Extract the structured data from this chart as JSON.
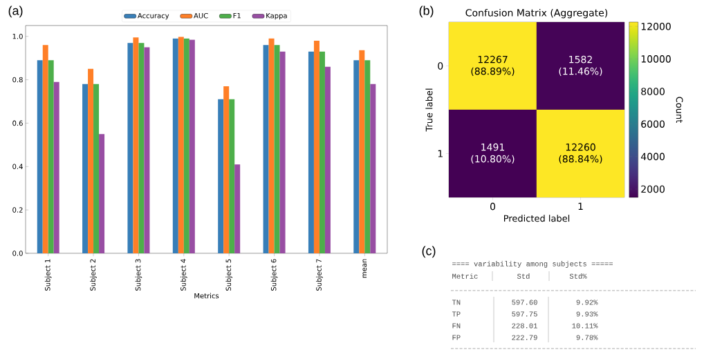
{
  "chart_data": [
    {
      "type": "bar",
      "annotations": [
        "(a)"
      ],
      "xlabel": "Metrics",
      "categories": [
        "Subject 1",
        "Subject 2",
        "Subject 3",
        "Subject 4",
        "Subject 5",
        "Subject 6",
        "Subject 7",
        "mean"
      ],
      "series": [
        {
          "name": "Accuracy",
          "color": "#377eb8",
          "values": [
            0.89,
            0.78,
            0.97,
            0.99,
            0.71,
            0.96,
            0.93,
            0.89
          ]
        },
        {
          "name": "AUC",
          "color": "#ff7f27",
          "values": [
            0.96,
            0.85,
            0.995,
            0.998,
            0.77,
            0.99,
            0.98,
            0.936
          ]
        },
        {
          "name": "F1",
          "color": "#4daf4a",
          "values": [
            0.89,
            0.78,
            0.97,
            0.99,
            0.71,
            0.96,
            0.93,
            0.89
          ]
        },
        {
          "name": "Kappa",
          "color": "#984ea3",
          "values": [
            0.79,
            0.55,
            0.95,
            0.985,
            0.41,
            0.93,
            0.86,
            0.78
          ]
        }
      ],
      "ylim": [
        0,
        1.05
      ],
      "yticks": [
        {
          "value": 0,
          "label": "0.0"
        },
        0.2,
        0.4,
        0.6,
        0.8,
        {
          "value": 1,
          "label": "1.0"
        }
      ],
      "legend": "top",
      "grid": false
    },
    {
      "type": "heatmap",
      "annotations": [
        "(b)"
      ],
      "title": "Confusion Matrix (Aggregate)",
      "xlabel": "Predicted label",
      "ylabel": "True label",
      "clabel": "Count",
      "categories": [
        "0",
        "1"
      ],
      "y_categories": [
        "0",
        "1"
      ],
      "cells": [
        [
          12267,
          1582
        ],
        [
          1491,
          12260
        ]
      ],
      "cell_labels": [
        [
          "12267 (88.89%)",
          "1582 (11.46%)"
        ],
        [
          "1491 (10.80%)",
          "12260 (88.84%)"
        ]
      ],
      "clim": [
        1491,
        12267
      ],
      "cticks": [
        2000,
        4000,
        6000,
        8000,
        10000,
        12000
      ]
    },
    {
      "type": "other",
      "annotations": [
        "(c)",
        "Metric"
      ],
      "title": "==== variability among subjects =====",
      "categories": [
        "TN",
        "TP",
        "FN",
        "FP"
      ],
      "series": [
        {
          "name": "Std",
          "values": [
            597.6,
            597.75,
            228.01,
            222.79
          ],
          "value_labels": [
            "597.60",
            "597.75",
            "228.01",
            "222.79"
          ]
        },
        {
          "name": "Std%",
          "values": [
            9.92,
            9.93,
            10.11,
            9.78
          ],
          "value_labels": [
            "9.92%",
            "9.93%",
            "10.11%",
            "9.78%"
          ]
        }
      ]
    }
  ]
}
